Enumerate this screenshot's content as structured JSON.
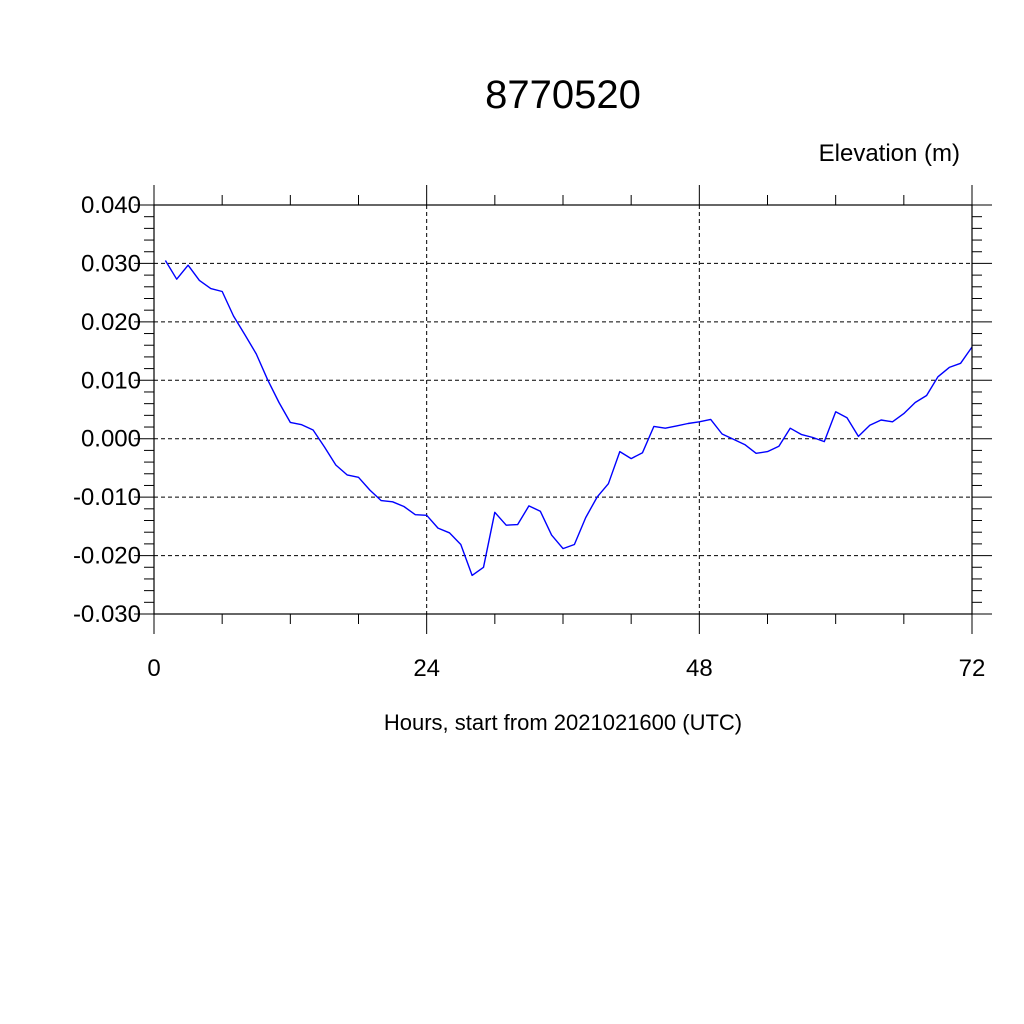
{
  "chart_data": {
    "type": "line",
    "title": "8770520",
    "ylabel": "Elevation (m)",
    "xlabel": "Hours, start from 2021021600 (UTC)",
    "xlim": [
      0,
      72
    ],
    "ylim": [
      -0.03,
      0.04
    ],
    "x_ticks": [
      0,
      24,
      48,
      72
    ],
    "x_tick_labels": [
      "0",
      "24",
      "48",
      "72"
    ],
    "y_ticks": [
      -0.03,
      -0.02,
      -0.01,
      0.0,
      0.01,
      0.02,
      0.03,
      0.04
    ],
    "y_tick_labels": [
      "-0.030",
      "-0.020",
      "-0.010",
      "0.000",
      "0.010",
      "0.020",
      "0.030",
      "0.040"
    ],
    "grid": true,
    "series": [
      {
        "color": "#0000ff",
        "x": [
          1,
          2,
          3,
          4,
          5,
          6,
          7,
          8,
          9,
          10,
          11,
          12,
          13,
          14,
          15,
          16,
          17,
          18,
          19,
          20,
          21,
          22,
          23,
          24,
          25,
          26,
          27,
          28,
          29,
          30,
          31,
          32,
          33,
          34,
          35,
          36,
          37,
          38,
          39,
          40,
          41,
          42,
          43,
          44,
          45,
          46,
          47,
          48,
          49,
          50,
          51,
          52,
          53,
          54,
          55,
          56,
          57,
          58,
          59,
          60,
          61,
          62,
          63,
          64,
          65,
          66,
          67,
          68,
          69,
          70,
          71,
          72
        ],
        "values": [
          0.0305,
          0.0273,
          0.0297,
          0.0271,
          0.0257,
          0.0252,
          0.021,
          0.0178,
          0.0145,
          0.0101,
          0.0062,
          0.0028,
          0.0024,
          0.0015,
          -0.0014,
          -0.0045,
          -0.0062,
          -0.0066,
          -0.0088,
          -0.0106,
          -0.0108,
          -0.0116,
          -0.013,
          -0.0131,
          -0.0153,
          -0.0161,
          -0.0181,
          -0.0234,
          -0.022,
          -0.0126,
          -0.0148,
          -0.0147,
          -0.0115,
          -0.0124,
          -0.0165,
          -0.0188,
          -0.0181,
          -0.0135,
          -0.01,
          -0.0077,
          -0.0022,
          -0.0034,
          -0.0024,
          0.0021,
          0.0018,
          0.0022,
          0.0026,
          0.0029,
          0.0033,
          0.0008,
          -0.0001,
          -0.001,
          -0.0025,
          -0.0022,
          -0.0013,
          0.0018,
          0.0007,
          0.0002,
          -0.0005,
          0.0046,
          0.0036,
          0.0004,
          0.0023,
          0.0032,
          0.0029,
          0.0043,
          0.0062,
          0.0074,
          0.0106,
          0.0122,
          0.0129,
          0.0157
        ]
      }
    ]
  }
}
